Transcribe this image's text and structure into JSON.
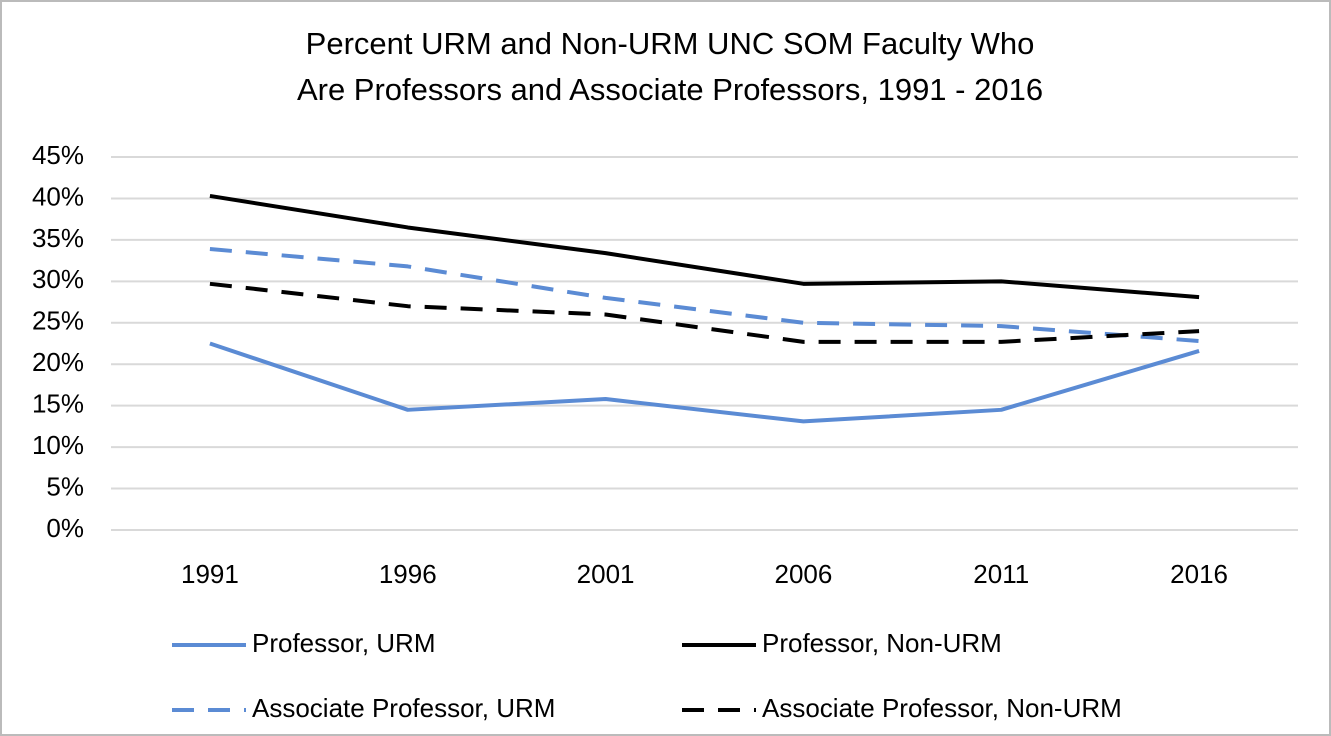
{
  "chart_data": {
    "type": "line",
    "title": [
      "Percent URM and Non-URM UNC SOM Faculty Who",
      "Are Professors and Associate Professors, 1991 - 2016"
    ],
    "categories": [
      "1991",
      "1996",
      "2001",
      "2006",
      "2011",
      "2016"
    ],
    "series": [
      {
        "name": "Professor, URM",
        "color": "#5b8bd4",
        "dashed": false,
        "values": [
          22.5,
          14.5,
          15.8,
          13.1,
          14.5,
          21.6
        ]
      },
      {
        "name": "Professor, Non-URM",
        "color": "#000000",
        "dashed": false,
        "values": [
          40.3,
          36.5,
          33.4,
          29.7,
          30.0,
          28.1
        ]
      },
      {
        "name": "Associate Professor, URM",
        "color": "#5b8bd4",
        "dashed": true,
        "values": [
          33.9,
          31.8,
          28.0,
          25.0,
          24.6,
          22.8
        ]
      },
      {
        "name": "Associate Professor, Non-URM",
        "color": "#000000",
        "dashed": true,
        "values": [
          29.7,
          27.0,
          26.0,
          22.7,
          22.7,
          24.0
        ]
      }
    ],
    "ylim": [
      0,
      45
    ],
    "yticks": [
      {
        "value": 0,
        "label": "0%"
      },
      {
        "value": 5,
        "label": "5%"
      },
      {
        "value": 10,
        "label": "10%"
      },
      {
        "value": 15,
        "label": "15%"
      },
      {
        "value": 20,
        "label": "20%"
      },
      {
        "value": 25,
        "label": "25%"
      },
      {
        "value": 30,
        "label": "30%"
      },
      {
        "value": 35,
        "label": "35%"
      },
      {
        "value": 40,
        "label": "40%"
      },
      {
        "value": 45,
        "label": "45%"
      }
    ],
    "grid": true,
    "legend": "bottom"
  }
}
